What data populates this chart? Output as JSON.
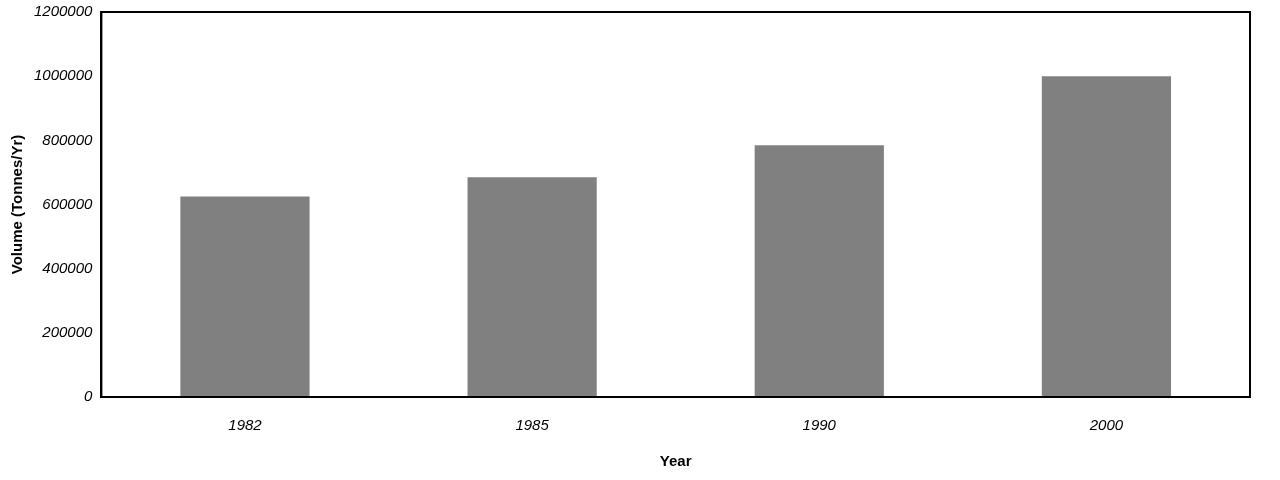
{
  "chart_data": {
    "type": "bar",
    "xlabel": "Year",
    "ylabel": "Volume (Tonnes/Yr)",
    "categories": [
      "1982",
      "1985",
      "1990",
      "2000"
    ],
    "values": [
      625000,
      685000,
      785000,
      1000000
    ],
    "color": "#808080",
    "ylim": [
      0,
      1200000
    ],
    "yticks": [
      0,
      200000,
      400000,
      600000,
      800000,
      1000000,
      1200000
    ],
    "grid": false,
    "legend": false
  }
}
